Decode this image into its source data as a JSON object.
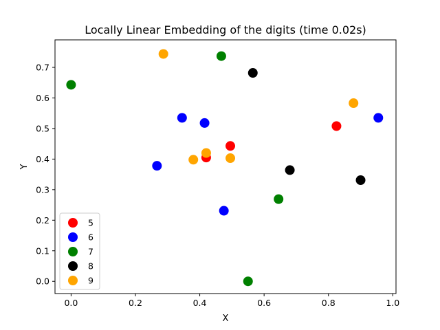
{
  "chart_data": {
    "type": "scatter",
    "title": "Locally Linear Embedding of the digits (time 0.02s)",
    "xlabel": "X",
    "ylabel": "Y",
    "xlim": [
      -0.05,
      1.01
    ],
    "ylim": [
      -0.04,
      0.79
    ],
    "xticks": [
      "0.0",
      "0.2",
      "0.4",
      "0.6",
      "0.8",
      "1.0"
    ],
    "xtick_values": [
      0.0,
      0.2,
      0.4,
      0.6,
      0.8,
      1.0
    ],
    "yticks": [
      "0.0",
      "0.1",
      "0.2",
      "0.3",
      "0.4",
      "0.5",
      "0.6",
      "0.7"
    ],
    "ytick_values": [
      0.0,
      0.1,
      0.2,
      0.3,
      0.4,
      0.5,
      0.6,
      0.7
    ],
    "grid": false,
    "legend_position": "lower-left",
    "series": [
      {
        "name": "5",
        "color": "#ff0000",
        "points": [
          [
            0.42,
            0.405
          ],
          [
            0.495,
            0.443
          ],
          [
            0.825,
            0.508
          ]
        ]
      },
      {
        "name": "6",
        "color": "#0000ff",
        "points": [
          [
            0.267,
            0.378
          ],
          [
            0.345,
            0.535
          ],
          [
            0.415,
            0.518
          ],
          [
            0.475,
            0.231
          ],
          [
            0.955,
            0.535
          ]
        ]
      },
      {
        "name": "7",
        "color": "#008000",
        "points": [
          [
            0.0,
            0.643
          ],
          [
            0.467,
            0.737
          ],
          [
            0.55,
            0.0
          ],
          [
            0.645,
            0.269
          ]
        ]
      },
      {
        "name": "8",
        "color": "#000000",
        "points": [
          [
            0.565,
            0.682
          ],
          [
            0.68,
            0.364
          ],
          [
            0.9,
            0.331
          ]
        ]
      },
      {
        "name": "9",
        "color": "#ffa500",
        "points": [
          [
            0.287,
            0.744
          ],
          [
            0.38,
            0.398
          ],
          [
            0.42,
            0.42
          ],
          [
            0.495,
            0.403
          ],
          [
            0.878,
            0.583
          ]
        ]
      }
    ]
  }
}
